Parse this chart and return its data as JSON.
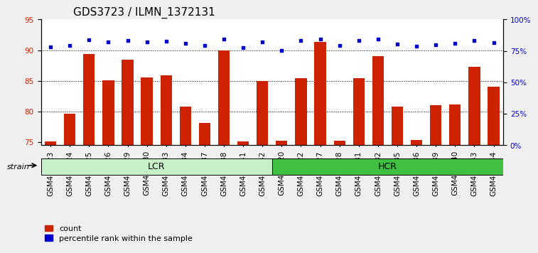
{
  "title": "GDS3723 / ILMN_1372131",
  "samples": [
    "GSM429923",
    "GSM429924",
    "GSM429925",
    "GSM429926",
    "GSM429929",
    "GSM429930",
    "GSM429933",
    "GSM429934",
    "GSM429937",
    "GSM429938",
    "GSM429941",
    "GSM429942",
    "GSM429920",
    "GSM429922",
    "GSM429927",
    "GSM429928",
    "GSM429931",
    "GSM429932",
    "GSM429935",
    "GSM429936",
    "GSM429939",
    "GSM429940",
    "GSM429943",
    "GSM429944"
  ],
  "count_values": [
    75.1,
    79.6,
    89.4,
    85.1,
    88.5,
    85.6,
    85.9,
    80.8,
    78.1,
    90.0,
    75.1,
    85.0,
    75.2,
    85.4,
    91.3,
    75.2,
    85.4,
    89.0,
    80.8,
    75.3,
    81.0,
    81.2,
    87.3,
    84.0
  ],
  "percentile_values": [
    78.0,
    79.5,
    84.0,
    82.2,
    83.5,
    82.2,
    82.5,
    80.8,
    79.3,
    84.4,
    77.5,
    81.9,
    75.5,
    83.0,
    84.2,
    79.2,
    83.5,
    84.3,
    80.4,
    78.8,
    80.0,
    80.8,
    83.0,
    81.5
  ],
  "groups": [
    {
      "name": "LCR",
      "start": 0,
      "end": 12,
      "color": "#c8f0c8"
    },
    {
      "name": "HCR",
      "start": 12,
      "end": 24,
      "color": "#40c040"
    }
  ],
  "ylim_left": [
    74.5,
    95
  ],
  "ylim_right": [
    0,
    100
  ],
  "yticks_left": [
    75,
    80,
    85,
    90,
    95
  ],
  "yticks_right": [
    0,
    25,
    50,
    75,
    100
  ],
  "bar_color": "#cc2200",
  "dot_color": "#0000cc",
  "bar_width": 0.6,
  "bg_color": "#f0f0f0",
  "plot_bg": "#ffffff",
  "xlabel": "",
  "ylabel_left": "",
  "ylabel_right": "",
  "legend_count": "count",
  "legend_percentile": "percentile rank within the sample",
  "strain_label": "strain",
  "grid_yticks": [
    80,
    85,
    90
  ],
  "title_fontsize": 11,
  "tick_fontsize": 7.5,
  "label_fontsize": 8
}
